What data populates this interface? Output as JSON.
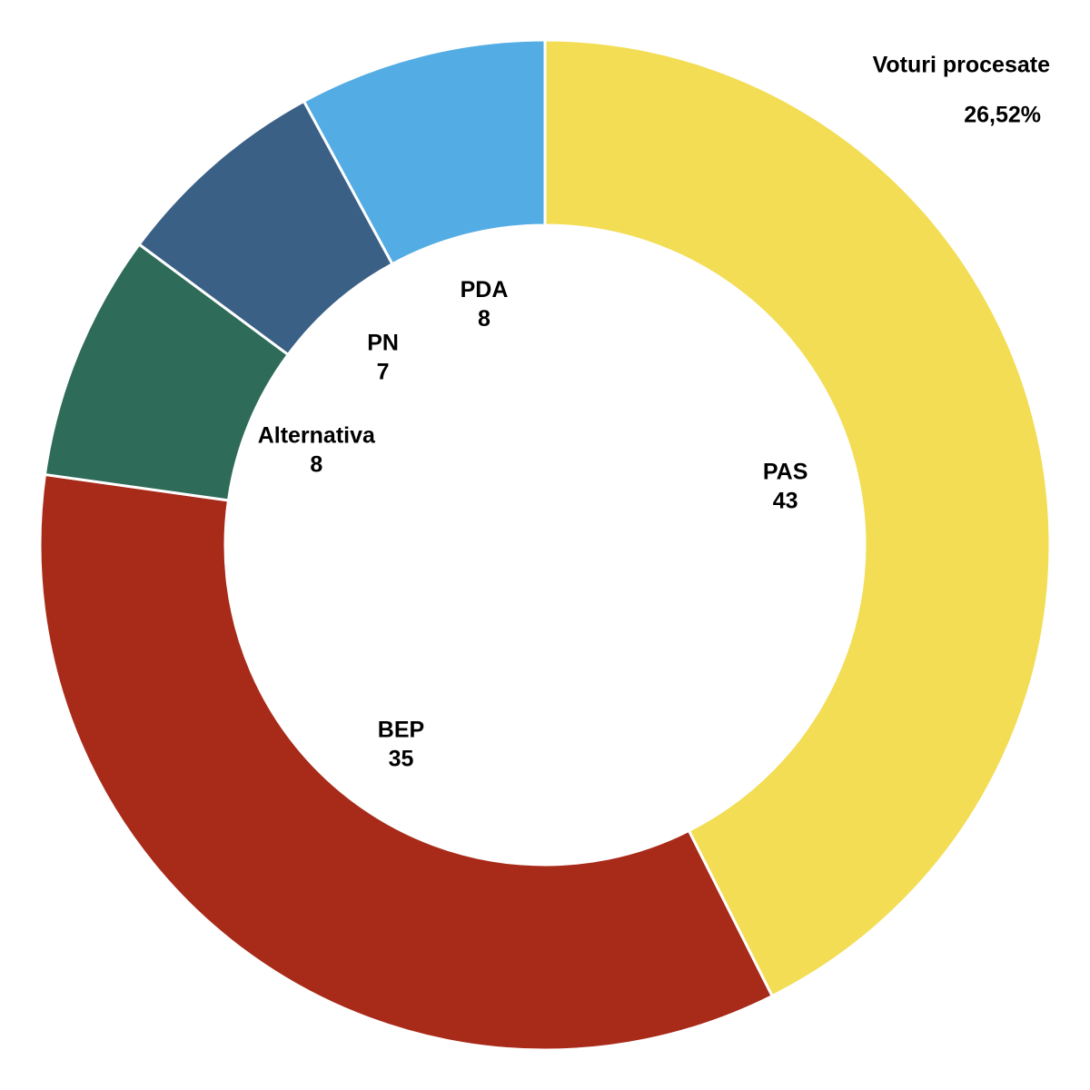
{
  "chart_data": {
    "type": "donut",
    "categories": [
      "PAS",
      "BEP",
      "Alternativa",
      "PN",
      "PDA"
    ],
    "values": [
      43,
      35,
      8,
      7,
      8
    ],
    "colors": [
      "#f2dd55",
      "#a82a19",
      "#2e6b59",
      "#3b6086",
      "#53ace3"
    ],
    "annotation": {
      "title": "Voturi procesate",
      "text": "26,52%"
    }
  }
}
